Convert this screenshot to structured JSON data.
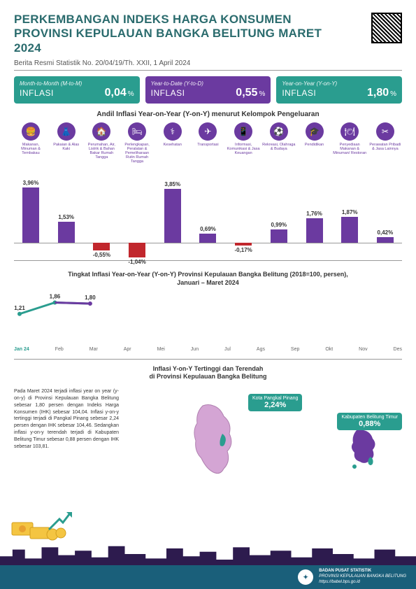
{
  "header": {
    "title": "PERKEMBANGAN INDEKS HARGA KONSUMEN PROVINSI KEPULAUAN BANGKA BELITUNG MARET 2024",
    "subtitle": "Berita Resmi Statistik No. 20/04/19/Th. XXII, 1 April 2024"
  },
  "stats": [
    {
      "sub": "Month-to-Month (M-to-M)",
      "label": "INFLASI",
      "value": "0,04",
      "pct": "%",
      "color": "teal"
    },
    {
      "sub": "Year-to-Date (Y-to-D)",
      "label": "INFLASI",
      "value": "0,55",
      "pct": "%",
      "color": "purple"
    },
    {
      "sub": "Year-on-Year (Y-on-Y)",
      "label": "INFLASI",
      "value": "1,80",
      "pct": "%",
      "color": "teal"
    }
  ],
  "barSection": {
    "title": "Andil Inflasi Year-on-Year (Y-on-Y) menurut Kelompok Pengeluaran",
    "categories": [
      {
        "icon": "🍔",
        "label": "Makanan, Minuman & Tembakau"
      },
      {
        "icon": "👗",
        "label": "Pakaian & Alas Kaki"
      },
      {
        "icon": "🏠",
        "label": "Perumahan, Air, Listrik & Bahan Bakar Rumah Tangga"
      },
      {
        "icon": "🛏",
        "label": "Perlengkapan, Peralatan & Pemeliharaan Rutin Rumah Tangga"
      },
      {
        "icon": "⚕",
        "label": "Kesehatan"
      },
      {
        "icon": "✈",
        "label": "Transportasi"
      },
      {
        "icon": "📱",
        "label": "Informasi, Komunikasi & Jasa Keuangan"
      },
      {
        "icon": "⚽",
        "label": "Rekreasi, Olahraga & Budaya"
      },
      {
        "icon": "🎓",
        "label": "Pendidikan"
      },
      {
        "icon": "🍽",
        "label": "Penyediaan Makanan & Minuman/ Restoran"
      },
      {
        "icon": "✂",
        "label": "Perawatan Pribadi & Jasa Lainnya"
      }
    ],
    "values": [
      3.96,
      1.53,
      -0.55,
      -1.04,
      3.85,
      0.69,
      -0.17,
      0.99,
      1.76,
      1.87,
      0.42
    ],
    "labels": [
      "3,96%",
      "1,53%",
      "-0,55%",
      "-1,04%",
      "3,85%",
      "0,69%",
      "-0,17%",
      "0,99%",
      "1,76%",
      "1,87%",
      "0,42%"
    ],
    "posColor": "#6b3aa0",
    "negColor": "#c1272d",
    "maxAbs": 4.0,
    "barHeightPx": 80
  },
  "lineSection": {
    "title1": "Tingkat Inflasi Year-on-Year (Y-on-Y) Provinsi Kepulauan Bangka Belitung (2018=100, persen),",
    "title2": "Januari – Maret 2024",
    "points": [
      {
        "x": 0,
        "val": 1.21,
        "label": "1,21"
      },
      {
        "x": 1,
        "val": 1.86,
        "label": "1,86"
      },
      {
        "x": 2,
        "val": 1.8,
        "label": "1,80"
      }
    ],
    "months": [
      "Jan 24",
      "Feb",
      "Mar",
      "Apr",
      "Mei",
      "Jun",
      "Jul",
      "Ags",
      "Sep",
      "Okt",
      "Nov",
      "Des"
    ],
    "lineColor": "#2a9d8f",
    "endColor": "#6b3aa0"
  },
  "mapSection": {
    "title1": "Inflasi Y-on-Y Tertinggi dan Terendah",
    "title2": "di Provinsi Kepulauan Bangka Belitung",
    "paragraph": "Pada Maret 2024 terjadi inflasi year on year (y-on-y) di Provinsi Kepulauan Bangka Belitung sebesar 1,80 persen dengan Indeks Harga Konsumen (IHK) sebesar 104,04. Inflasi y-on-y tertinggi terjadi di Pangkal Pinang sebesar 2,24 persen dengan IHK sebesar 104,46. Sedangkan inflasi y-on-y terendah terjadi di Kabupaten Belitung Timur sebesar 0,88 persen dengan IHK sebesar 103,81.",
    "badge1": {
      "name": "Kota Pangkal Pinang",
      "value": "2,24%"
    },
    "badge2": {
      "name": "Kabupaten Belitung Timur",
      "value": "0,88%"
    },
    "region1Color": "#d4a5d4",
    "region1Accent": "#2a9d8f",
    "region2Color": "#6b3aa0",
    "region2Accent": "#2a9d8f"
  },
  "footer": {
    "line1": "BADAN PUSAT STATISTIK",
    "line2": "PROVINSI KEPULAUAN BANGKA BELITUNG",
    "line3": "https://babel.bps.go.id"
  }
}
